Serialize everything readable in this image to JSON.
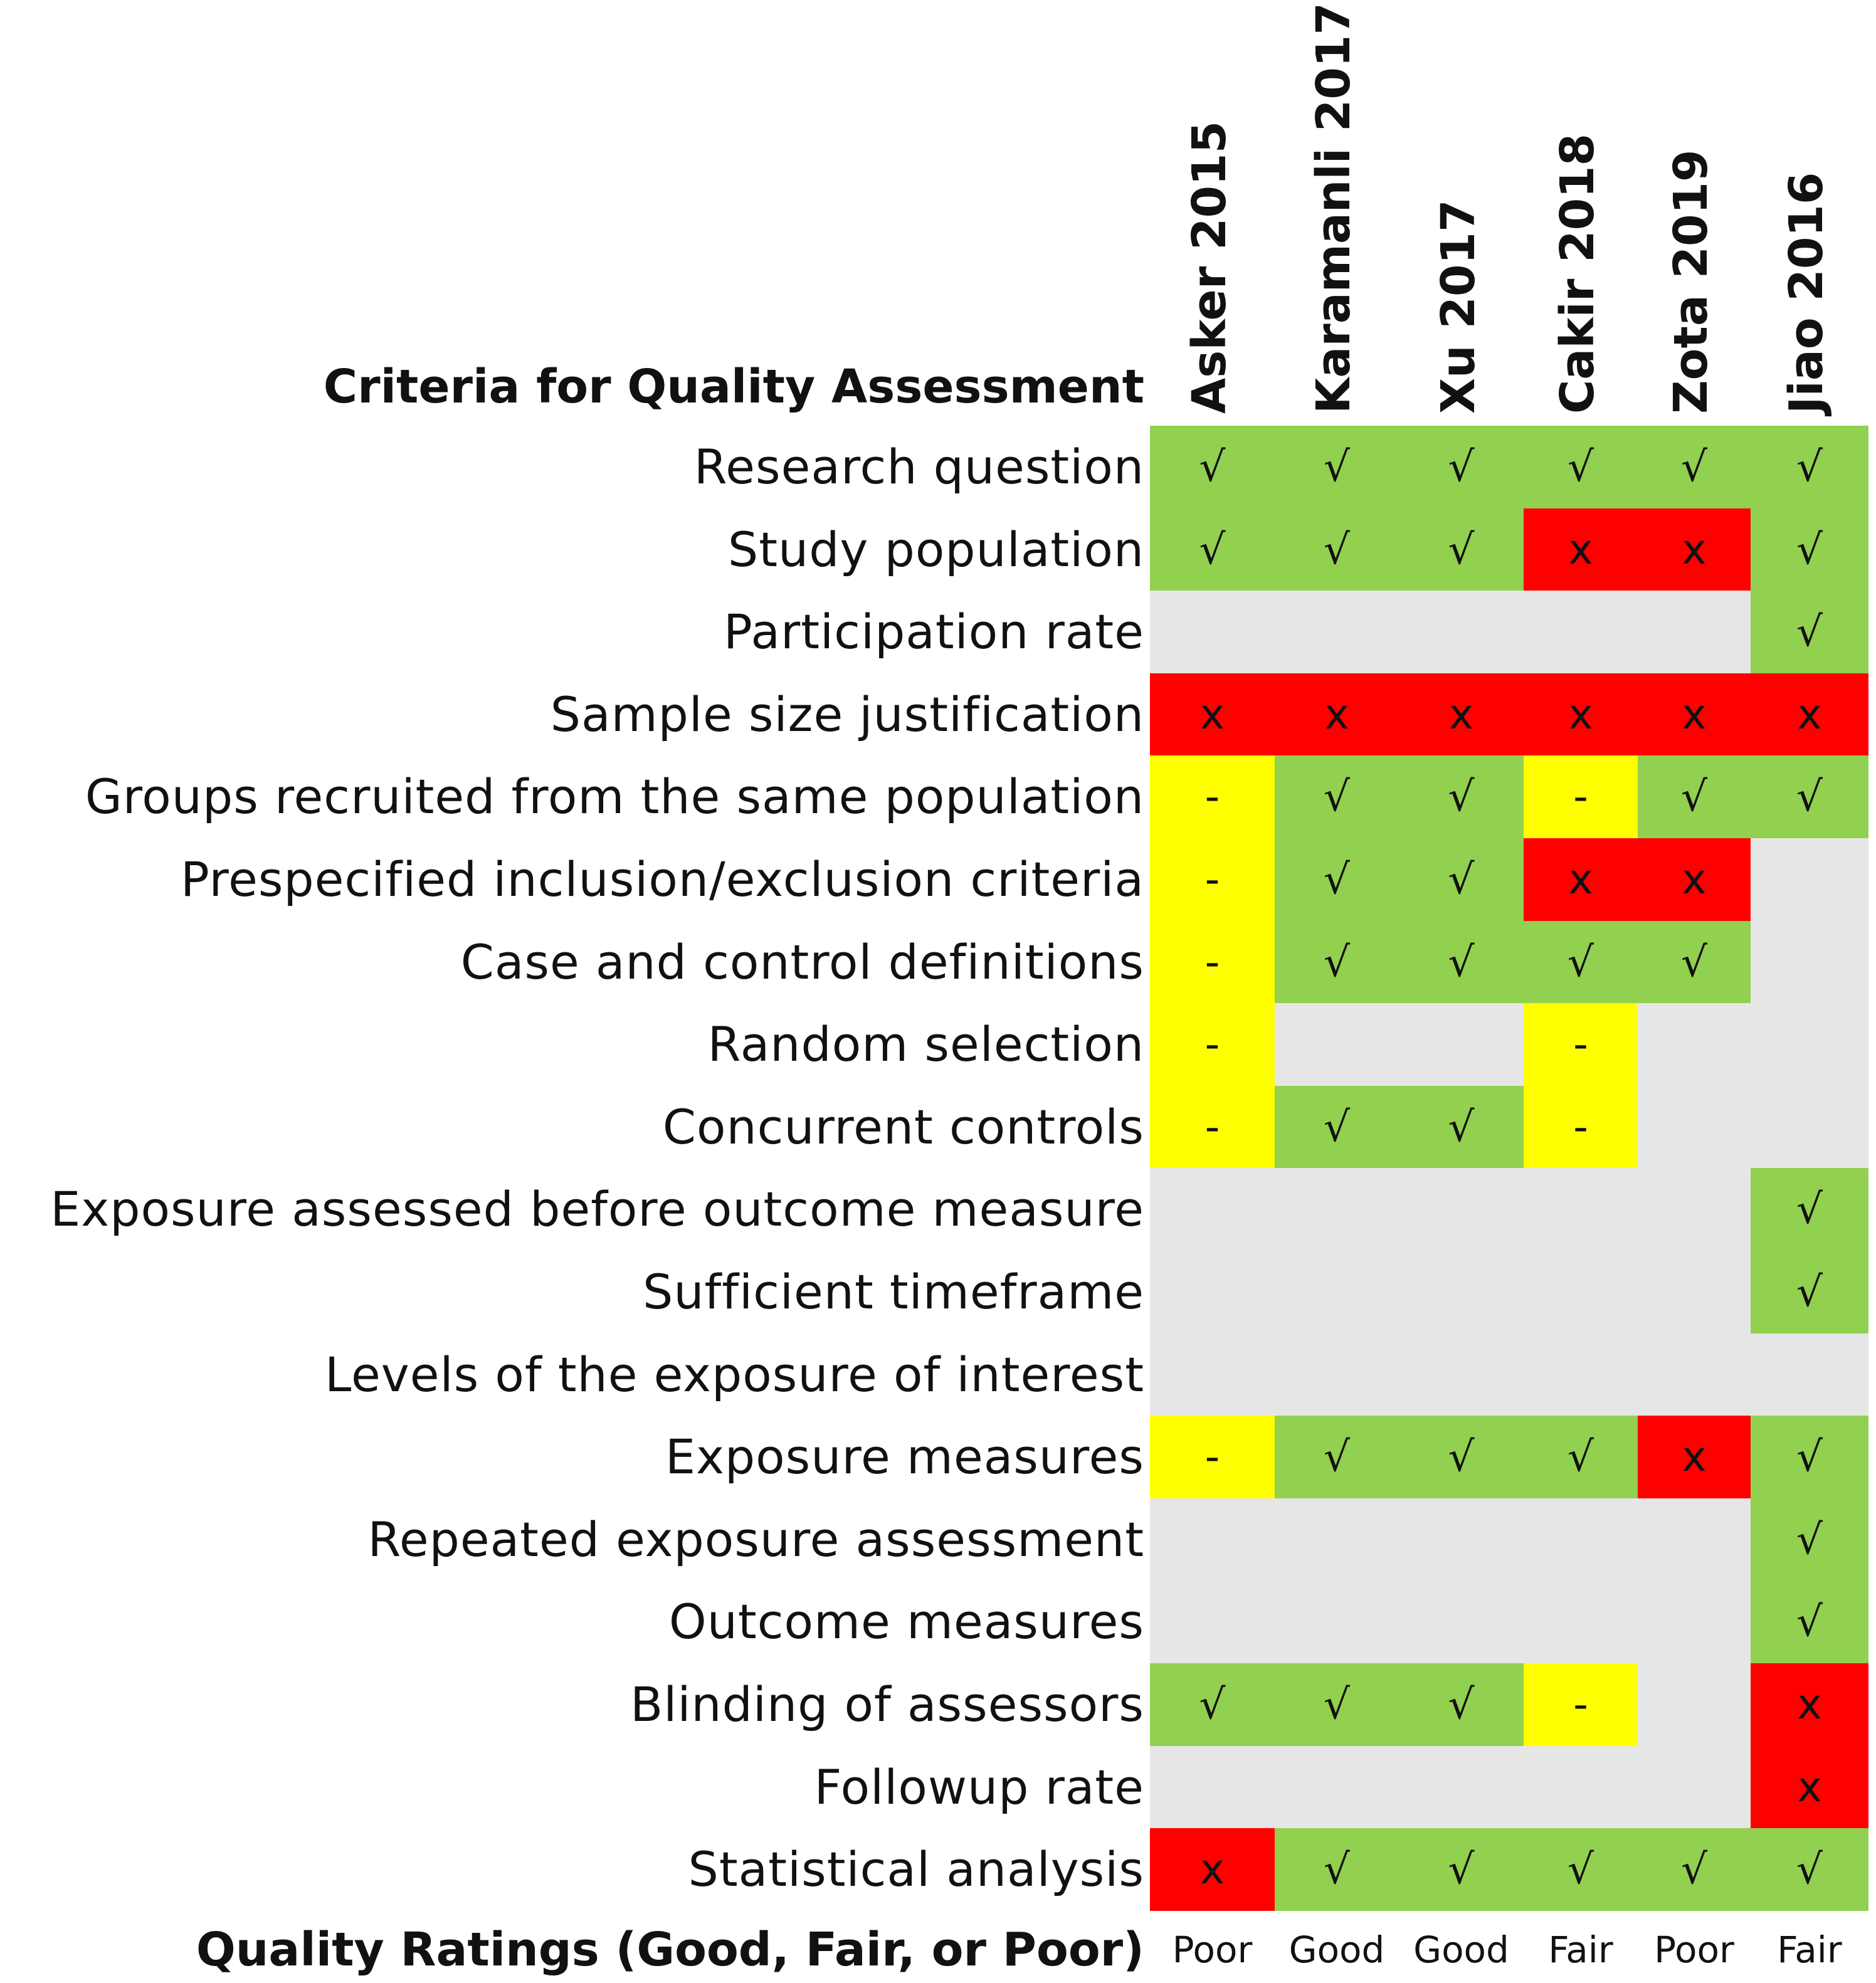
{
  "header": {
    "criteria_title": "Criteria for Quality Assessment",
    "ratings_title": "Quality Ratings (Good, Fair, or Poor)"
  },
  "studies": [
    "Asker 2015",
    "Karamanli 2017",
    "Xu 2017",
    "Cakir 2018",
    "Zota 2019",
    "Jiao 2016"
  ],
  "ratings": [
    "Poor",
    "Good",
    "Good",
    "Fair",
    "Poor",
    "Fair"
  ],
  "colors": {
    "yes": "#92d050",
    "no": "#ff0000",
    "partial": "#ffff00",
    "na": "#e6e6e6"
  },
  "rows": [
    {
      "label": "Research question",
      "cells": [
        "√",
        "√",
        "√",
        "√",
        "√",
        "√"
      ],
      "status": [
        "yes",
        "yes",
        "yes",
        "yes",
        "yes",
        "yes"
      ]
    },
    {
      "label": "Study population",
      "cells": [
        "√",
        "√",
        "√",
        "x",
        "x",
        "√"
      ],
      "status": [
        "yes",
        "yes",
        "yes",
        "no",
        "no",
        "yes"
      ]
    },
    {
      "label": "Participation rate",
      "cells": [
        "",
        "",
        "",
        "",
        "",
        "√"
      ],
      "status": [
        "na",
        "na",
        "na",
        "na",
        "na",
        "yes"
      ]
    },
    {
      "label": "Sample size justification",
      "cells": [
        "x",
        "x",
        "x",
        "x",
        "x",
        "x"
      ],
      "status": [
        "no",
        "no",
        "no",
        "no",
        "no",
        "no"
      ]
    },
    {
      "label": "Groups recruited from the same population",
      "cells": [
        "-",
        "√",
        "√",
        "-",
        "√",
        "√"
      ],
      "status": [
        "partial",
        "yes",
        "yes",
        "partial",
        "yes",
        "yes"
      ]
    },
    {
      "label": "Prespecified inclusion/exclusion criteria",
      "cells": [
        "-",
        "√",
        "√",
        "x",
        "x",
        ""
      ],
      "status": [
        "partial",
        "yes",
        "yes",
        "no",
        "no",
        "na"
      ]
    },
    {
      "label": "Case and control definitions",
      "cells": [
        "-",
        "√",
        "√",
        "√",
        "√",
        ""
      ],
      "status": [
        "partial",
        "yes",
        "yes",
        "yes",
        "yes",
        "na"
      ]
    },
    {
      "label": "Random selection",
      "cells": [
        "-",
        "",
        "",
        "-",
        "",
        ""
      ],
      "status": [
        "partial",
        "na",
        "na",
        "partial",
        "na",
        "na"
      ]
    },
    {
      "label": "Concurrent controls",
      "cells": [
        "-",
        "√",
        "√",
        "-",
        "",
        ""
      ],
      "status": [
        "partial",
        "yes",
        "yes",
        "partial",
        "na",
        "na"
      ]
    },
    {
      "label": "Exposure assessed before outcome measure",
      "cells": [
        "",
        "",
        "",
        "",
        "",
        "√"
      ],
      "status": [
        "na",
        "na",
        "na",
        "na",
        "na",
        "yes"
      ]
    },
    {
      "label": "Sufficient timeframe ",
      "cells": [
        "",
        "",
        "",
        "",
        "",
        "√"
      ],
      "status": [
        "na",
        "na",
        "na",
        "na",
        "na",
        "yes"
      ]
    },
    {
      "label": "Levels of the exposure of interest",
      "cells": [
        "",
        "",
        "",
        "",
        "",
        ""
      ],
      "status": [
        "na",
        "na",
        "na",
        "na",
        "na",
        "na"
      ]
    },
    {
      "label": "Exposure measures",
      "cells": [
        "-",
        "√",
        "√",
        "√",
        "x",
        "√"
      ],
      "status": [
        "partial",
        "yes",
        "yes",
        "yes",
        "no",
        "yes"
      ]
    },
    {
      "label": "Repeated exposure assessment",
      "cells": [
        "",
        "",
        "",
        "",
        "",
        "√"
      ],
      "status": [
        "na",
        "na",
        "na",
        "na",
        "na",
        "yes"
      ]
    },
    {
      "label": "Outcome measures",
      "cells": [
        "",
        "",
        "",
        "",
        "",
        "√"
      ],
      "status": [
        "na",
        "na",
        "na",
        "na",
        "na",
        "yes"
      ]
    },
    {
      "label": "Blinding of assessors",
      "cells": [
        "√",
        "√",
        "√",
        "-",
        "",
        "x"
      ],
      "status": [
        "yes",
        "yes",
        "yes",
        "partial",
        "na",
        "no"
      ]
    },
    {
      "label": "Followup rate",
      "cells": [
        "",
        "",
        "",
        "",
        "",
        "x"
      ],
      "status": [
        "na",
        "na",
        "na",
        "na",
        "na",
        "no"
      ]
    },
    {
      "label": "Statistical analysis",
      "cells": [
        "x",
        "√",
        "√",
        "√",
        "√",
        "√"
      ],
      "status": [
        "no",
        "yes",
        "yes",
        "yes",
        "yes",
        "yes"
      ]
    }
  ]
}
